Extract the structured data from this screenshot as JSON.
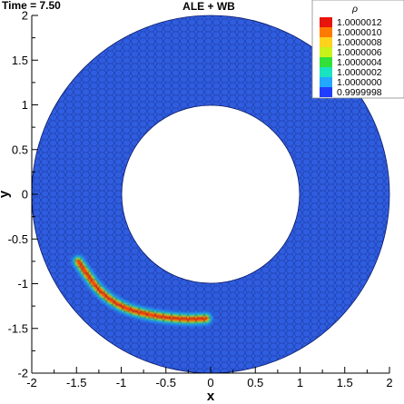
{
  "header": {
    "time_label": "Time = 7.50",
    "title": "ALE + WB"
  },
  "chart_data": {
    "type": "heatmap",
    "xlabel": "x",
    "ylabel": "y",
    "xlim": [
      -2,
      2
    ],
    "ylim": [
      -2,
      2
    ],
    "xticks": [
      "-2",
      "-1.5",
      "-1",
      "-0.5",
      "0",
      "0.5",
      "1",
      "1.5",
      "2"
    ],
    "yticks": [
      "-2",
      "-1.5",
      "-1",
      "-0.5",
      "0",
      "0.5",
      "1",
      "1.5",
      "2"
    ],
    "domain": {
      "shape": "annulus",
      "center": [
        0,
        0
      ],
      "inner_radius": 1,
      "outer_radius": 2,
      "mesh": "polygonal"
    },
    "background_value": 1.0,
    "feature": {
      "description_type": "arc",
      "points": [
        [
          -1.48,
          -0.75
        ],
        [
          -1.38,
          -0.9
        ],
        [
          -1.23,
          -1.1
        ],
        [
          -1.02,
          -1.25
        ],
        [
          -0.78,
          -1.33
        ],
        [
          -0.5,
          -1.38
        ],
        [
          -0.25,
          -1.4
        ],
        [
          -0.05,
          -1.39
        ]
      ],
      "peak_value": 1.0000012
    },
    "colorbar": {
      "title": "ρ",
      "labels": [
        "1.0000012",
        "1.0000010",
        "1.0000008",
        "1.0000006",
        "1.0000004",
        "1.0000002",
        "1.0000000",
        "0.9999998"
      ],
      "colors": [
        "#e8150c",
        "#ff7a00",
        "#ffd21c",
        "#c9f21a",
        "#33e03a",
        "#19e3c0",
        "#22a8ff",
        "#1f3dff"
      ]
    }
  }
}
